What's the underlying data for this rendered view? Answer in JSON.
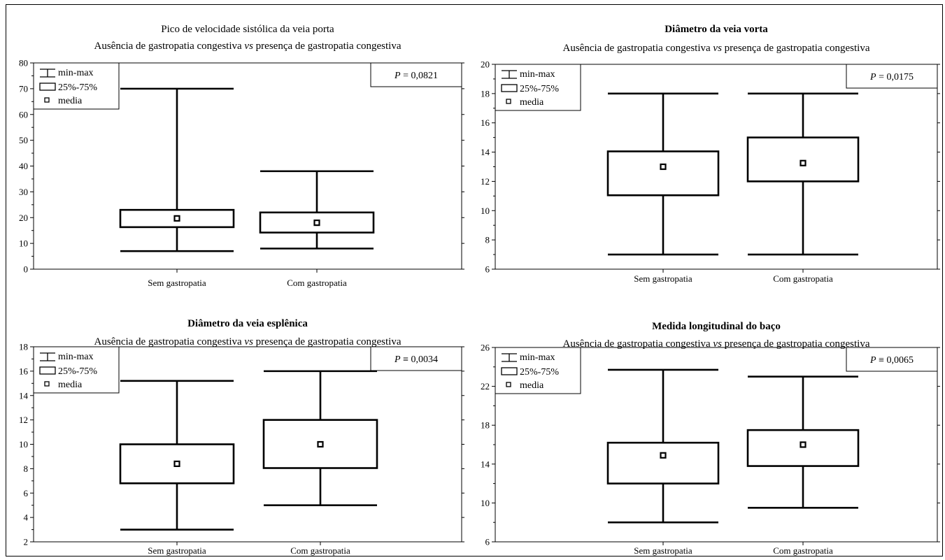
{
  "chart_data": [
    {
      "type": "box",
      "title": "Pico de velocidade sistólica da veia porta",
      "title_bold": false,
      "subtitle": {
        "before": "Ausência de gastropatia congestiva ",
        "italic": "vs",
        "after": " presença de gastropatia congestiva"
      },
      "p_value": {
        "label": "P",
        "text": " = 0,0821"
      },
      "ylim": [
        0,
        80
      ],
      "yticks": [
        "0",
        "10",
        "20",
        "30",
        "40",
        "50",
        "60",
        "70",
        "80"
      ],
      "categories": [
        "Sem gastropatia",
        "Com gastropatia"
      ],
      "boxes": [
        {
          "min": 7,
          "q1": 16.3,
          "mean": 19.7,
          "q3": 23,
          "max": 70
        },
        {
          "min": 8,
          "q1": 14.2,
          "mean": 18,
          "q3": 22,
          "max": 38
        }
      ],
      "legend": {
        "position": "top-left",
        "items": [
          "min-max",
          "25%-75%",
          "media"
        ]
      }
    },
    {
      "type": "box",
      "title": "Diâmetro da veia vorta",
      "title_bold": true,
      "subtitle": {
        "before": "Ausência de gastropatia congestiva ",
        "italic": "vs",
        "after": " presença de gastropatia congestiva"
      },
      "p_value": {
        "label": "P",
        "text": " = 0,0175"
      },
      "ylim": [
        6,
        20
      ],
      "yticks": [
        "6",
        "8",
        "10",
        "12",
        "14",
        "16",
        "18",
        "20"
      ],
      "categories": [
        "Sem gastropatia",
        "Com gastropatia"
      ],
      "boxes": [
        {
          "min": 7,
          "q1": 11.05,
          "mean": 13,
          "q3": 14.05,
          "max": 18
        },
        {
          "min": 7,
          "q1": 12,
          "mean": 13.25,
          "q3": 15,
          "max": 18
        }
      ],
      "legend": {
        "position": "top-left",
        "items": [
          "min-max",
          "25%-75%",
          "media"
        ]
      }
    },
    {
      "type": "box",
      "title": "Diâmetro da veia esplênica",
      "title_bold": true,
      "subtitle": {
        "before": "Ausência de gastropatia congestiva ",
        "italic": "vs",
        "after": " presença de gastropatia congestiva"
      },
      "p_value": {
        "label": "P",
        "text": " ≡ 0,0034"
      },
      "ylim": [
        2,
        18
      ],
      "yticks": [
        "2",
        "4",
        "6",
        "8",
        "10",
        "12",
        "14",
        "16",
        "18"
      ],
      "categories": [
        "Sem gastropatia",
        "Com gastropatia"
      ],
      "boxes": [
        {
          "min": 3,
          "q1": 6.8,
          "mean": 8.4,
          "q3": 10,
          "max": 15.2
        },
        {
          "min": 5,
          "q1": 8.05,
          "mean": 10,
          "q3": 12,
          "max": 16
        }
      ],
      "legend": {
        "position": "top-left",
        "items": [
          "min-max",
          "25%-75%",
          "media"
        ]
      }
    },
    {
      "type": "box",
      "title": "Medida longitudinal do baço",
      "title_bold": true,
      "subtitle": {
        "before": "Ausência de gastropatia congestiva ",
        "italic": "vs",
        "after": " presença de gastropatia congestiva"
      },
      "p_value": {
        "label": "P",
        "text": " ≡ 0,0065"
      },
      "ylim": [
        6,
        26
      ],
      "yticks": [
        "6",
        "10",
        "14",
        "18",
        "22",
        "26"
      ],
      "categories": [
        "Sem gastropatia",
        "Com gastropatia"
      ],
      "boxes": [
        {
          "min": 8,
          "q1": 12,
          "mean": 14.9,
          "q3": 16.2,
          "max": 23.7
        },
        {
          "min": 9.5,
          "q1": 13.8,
          "mean": 16,
          "q3": 17.5,
          "max": 23
        }
      ],
      "legend": {
        "position": "top-left",
        "items": [
          "min-max",
          "25%-75%",
          "media"
        ]
      }
    }
  ]
}
